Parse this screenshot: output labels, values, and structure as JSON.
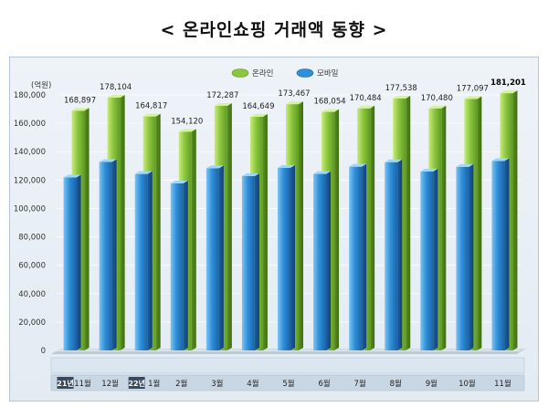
{
  "title": "< 온라인쇼핑 거래액 동향 >",
  "chart_data": {
    "type": "bar",
    "unit_label": "(억원)",
    "ylim": [
      0,
      180000
    ],
    "yticks": [
      0,
      20000,
      40000,
      60000,
      80000,
      100000,
      120000,
      140000,
      160000,
      180000
    ],
    "ytick_labels": [
      "0",
      "20,000",
      "40,000",
      "60,000",
      "80,000",
      "100,000",
      "120,000",
      "140,000",
      "160,000",
      "180,000"
    ],
    "categories": [
      "11월",
      "12월",
      "1월",
      "2월",
      "3월",
      "4월",
      "5월",
      "6월",
      "7월",
      "8월",
      "9월",
      "10월",
      "11월"
    ],
    "year_markers": [
      {
        "index": 0,
        "label": "21년"
      },
      {
        "index": 2,
        "label": "22년"
      }
    ],
    "legend_position": "top-right",
    "series": [
      {
        "name": "온라인",
        "color": "#8cc63f",
        "values": [
          168897,
          178104,
          164817,
          154120,
          172287,
          164649,
          173467,
          168054,
          170484,
          177538,
          170480,
          177097,
          181201
        ],
        "labels": [
          "168,897",
          "178,104",
          "164,817",
          "154,120",
          "172,287",
          "164,649",
          "173,467",
          "168,054",
          "170,484",
          "177,538",
          "170,480",
          "177,097",
          "181,201"
        ]
      },
      {
        "name": "모바일",
        "color": "#2f8fd8",
        "values": [
          121796,
          132761,
          124281,
          117699,
          128303,
          122797,
          128630,
          124349,
          129422,
          132598,
          126089,
          129299,
          133477
        ],
        "labels": [
          "121,796",
          "132,761",
          "124,281",
          "117,699",
          "128,303",
          "122,797",
          "128,630",
          "124,349",
          "129,422",
          "132,598",
          "126,089",
          "129,299",
          "133,477"
        ]
      }
    ]
  }
}
